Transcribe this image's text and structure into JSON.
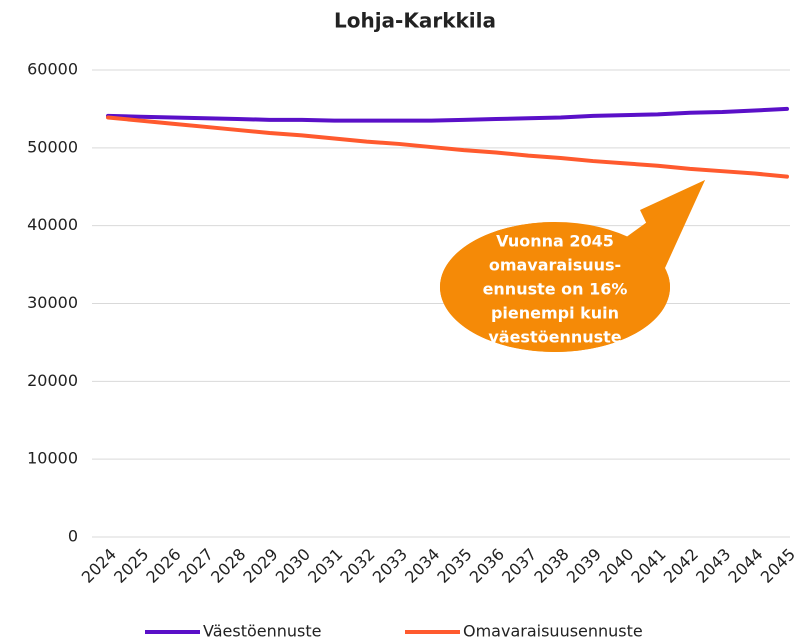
{
  "chart_data": {
    "type": "line",
    "title": "Lohja-Karkkila",
    "categories": [
      "2024",
      "2025",
      "2026",
      "2027",
      "2028",
      "2029",
      "2030",
      "2031",
      "2032",
      "2033",
      "2034",
      "2035",
      "2036",
      "2037",
      "2038",
      "2039",
      "2040",
      "2041",
      "2042",
      "2043",
      "2044",
      "2045"
    ],
    "series": [
      {
        "name": "Väestöennuste",
        "color": "#5a10c8",
        "values": [
          54100,
          54000,
          53900,
          53800,
          53700,
          53600,
          53600,
          53500,
          53500,
          53500,
          53500,
          53600,
          53700,
          53800,
          53900,
          54100,
          54200,
          54300,
          54500,
          54600,
          54800,
          55000
        ]
      },
      {
        "name": "Omavaraisuusennuste",
        "color": "#ff5a2e",
        "values": [
          53900,
          53500,
          53100,
          52700,
          52300,
          51900,
          51600,
          51200,
          50800,
          50500,
          50100,
          49700,
          49400,
          49000,
          48700,
          48300,
          48000,
          47700,
          47300,
          47000,
          46700,
          46300
        ]
      }
    ],
    "ylim": [
      0,
      60000
    ],
    "yticks": [
      0,
      10000,
      20000,
      30000,
      40000,
      50000,
      60000
    ],
    "grid": true,
    "legend": "bottom",
    "annotation": {
      "color": "#f58a07",
      "lines": [
        "Vuonna 2045",
        "omavaraisuus-",
        "ennuste on 16%",
        "pienempi kuin",
        "väestöennuste"
      ]
    }
  }
}
